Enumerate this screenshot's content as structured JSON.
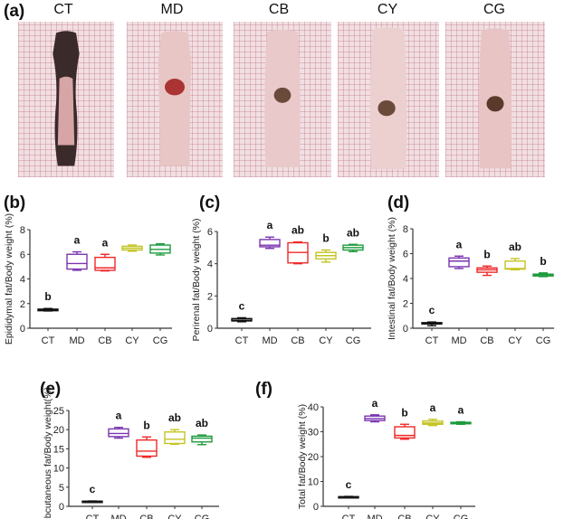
{
  "panel_a": {
    "label": "(a)",
    "groups": [
      "CT",
      "MD",
      "CB",
      "CY",
      "CG"
    ]
  },
  "colors": {
    "CT": "#111111",
    "MD": "#7a35b0",
    "CB": "#f02828",
    "CY": "#c4c424",
    "CG": "#1e9a3c"
  },
  "chart_data": [
    {
      "panel": "(b)",
      "type": "box",
      "ylabel": "Epididymal fat/Body weight (%)",
      "ylim": [
        0,
        8
      ],
      "yticks": [
        0,
        2,
        4,
        6,
        8
      ],
      "categories": [
        "CT",
        "MD",
        "CB",
        "CY",
        "CG"
      ],
      "letters": [
        "b",
        "a",
        "a",
        "",
        ""
      ],
      "boxes": [
        [
          1.4,
          1.42,
          1.48,
          1.55,
          1.6
        ],
        [
          4.7,
          4.8,
          5.25,
          6.0,
          6.2
        ],
        [
          4.65,
          4.7,
          4.9,
          5.75,
          6.0
        ],
        [
          6.25,
          6.35,
          6.5,
          6.65,
          6.75
        ],
        [
          5.95,
          6.1,
          6.4,
          6.75,
          6.85
        ]
      ]
    },
    {
      "panel": "(c)",
      "type": "box",
      "ylabel": "Perirenal fat/Body weight (%)",
      "ylim": [
        0,
        6
      ],
      "yticks": [
        0,
        2,
        4,
        6
      ],
      "categories": [
        "CT",
        "MD",
        "CB",
        "CY",
        "CG"
      ],
      "letters": [
        "c",
        "a",
        "ab",
        "b",
        "ab"
      ],
      "boxes": [
        [
          0.4,
          0.45,
          0.5,
          0.6,
          0.65
        ],
        [
          4.95,
          5.05,
          5.15,
          5.5,
          5.65
        ],
        [
          4.0,
          4.05,
          4.7,
          5.3,
          5.35
        ],
        [
          4.1,
          4.3,
          4.5,
          4.7,
          4.85
        ],
        [
          4.75,
          4.85,
          5.0,
          5.15,
          5.2
        ]
      ]
    },
    {
      "panel": "(d)",
      "type": "box",
      "ylabel": "Intestinal fat/Body weight (%)",
      "ylim": [
        0,
        8
      ],
      "yticks": [
        0,
        2,
        4,
        6,
        8
      ],
      "categories": [
        "CT",
        "MD",
        "CB",
        "CY",
        "CG"
      ],
      "letters": [
        "c",
        "a",
        "b",
        "ab",
        "b"
      ],
      "boxes": [
        [
          0.2,
          0.35,
          0.4,
          0.45,
          0.5
        ],
        [
          4.8,
          4.95,
          5.4,
          5.65,
          5.8
        ],
        [
          4.25,
          4.5,
          4.7,
          4.85,
          5.0
        ],
        [
          4.7,
          4.75,
          4.8,
          5.4,
          5.6
        ],
        [
          4.15,
          4.2,
          4.3,
          4.35,
          4.45
        ]
      ]
    },
    {
      "panel": "(e)",
      "type": "box",
      "ylabel": "Subcutaneous fat/Body weight(%)",
      "ylim": [
        0,
        25
      ],
      "yticks": [
        0,
        5,
        10,
        15,
        20,
        25
      ],
      "categories": [
        "CT",
        "MD",
        "CB",
        "CY",
        "CG"
      ],
      "letters": [
        "c",
        "a",
        "b",
        "ab",
        "ab"
      ],
      "boxes": [
        [
          1.2,
          1.25,
          1.3,
          1.35,
          1.4
        ],
        [
          17.8,
          18.2,
          19.0,
          20.2,
          20.6
        ],
        [
          12.8,
          13.1,
          14.4,
          17.3,
          18.1
        ],
        [
          16.2,
          16.4,
          17.5,
          19.4,
          20.0
        ],
        [
          16.1,
          16.8,
          17.8,
          18.3,
          18.6
        ]
      ]
    },
    {
      "panel": "(f)",
      "type": "box",
      "ylabel": "Total fat/Body weight (%)",
      "ylim": [
        0,
        40
      ],
      "yticks": [
        0,
        10,
        20,
        30,
        40
      ],
      "categories": [
        "CT",
        "MD",
        "CB",
        "CY",
        "CG"
      ],
      "letters": [
        "c",
        "a",
        "b",
        "a",
        "a"
      ],
      "boxes": [
        [
          3.6,
          3.7,
          3.8,
          3.9,
          4.0
        ],
        [
          34,
          34.5,
          35.3,
          36.3,
          36.8
        ],
        [
          27,
          27.5,
          28.5,
          32,
          33
        ],
        [
          32.5,
          33,
          33.5,
          34.3,
          35
        ],
        [
          33,
          33.2,
          33.5,
          33.8,
          34
        ]
      ]
    }
  ]
}
